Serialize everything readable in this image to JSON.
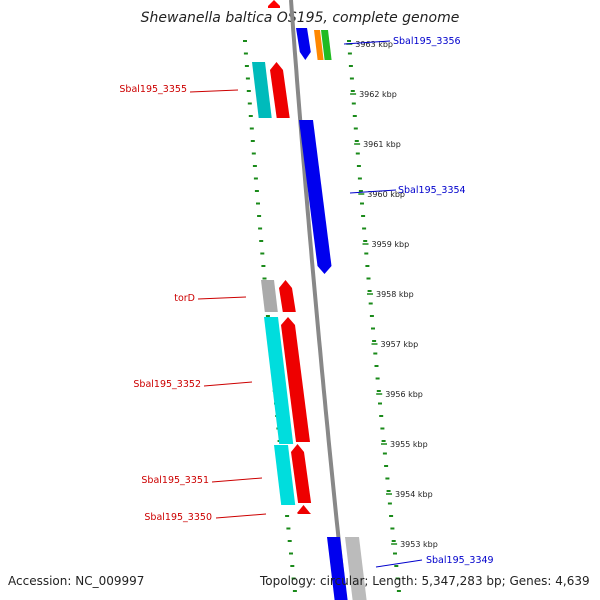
{
  "title": "Shewanella baltica OS195, complete genome",
  "footer": {
    "accession": "Accession: NC_009997",
    "topology": "Topology: circular; Length: 5,347,283 bp; Genes: 4,639"
  },
  "colors": {
    "backbone": "#888888",
    "dots": "#1a8a1a",
    "label_left": "#cc0000",
    "label_right": "#0000cc"
  },
  "ticks": [
    {
      "label": "3963 kbp"
    },
    {
      "label": "3962 kbp"
    },
    {
      "label": "3961 kbp"
    },
    {
      "label": "3960 kbp"
    },
    {
      "label": "3959 kbp"
    },
    {
      "label": "3958 kbp"
    },
    {
      "label": "3957 kbp"
    },
    {
      "label": "3956 kbp"
    },
    {
      "label": "3955 kbp"
    },
    {
      "label": "3954 kbp"
    },
    {
      "label": "3953 kbp"
    }
  ],
  "gene_labels": [
    {
      "text": "Sbal195_3356",
      "side": "right"
    },
    {
      "text": "Sbal195_3355",
      "side": "left"
    },
    {
      "text": "Sbal195_3354",
      "side": "right"
    },
    {
      "text": "torD",
      "side": "left"
    },
    {
      "text": "Sbal195_3352",
      "side": "left"
    },
    {
      "text": "Sbal195_3351",
      "side": "left"
    },
    {
      "text": "Sbal195_3350",
      "side": "left"
    },
    {
      "text": "Sbal195_3349",
      "side": "right"
    }
  ]
}
